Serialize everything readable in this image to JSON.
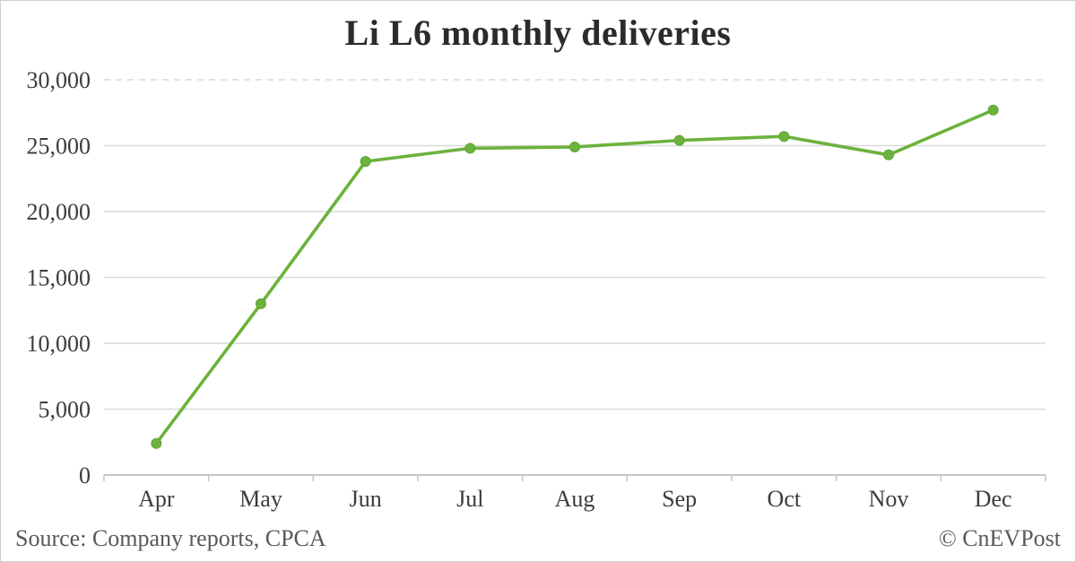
{
  "page": {
    "footer": {
      "source": "Source: Company reports, CPCA",
      "credit": "© CnEVPost"
    }
  },
  "chart_data": {
    "type": "line",
    "title": "Li L6 monthly deliveries",
    "categories": [
      "Apr",
      "May",
      "Jun",
      "Jul",
      "Aug",
      "Sep",
      "Oct",
      "Nov",
      "Dec"
    ],
    "series": [
      {
        "name": "Li L6 monthly deliveries",
        "values": [
          2400,
          13000,
          23800,
          24800,
          24900,
          25400,
          25700,
          24300,
          27700
        ]
      }
    ],
    "xlabel": "",
    "ylabel": "",
    "ylim": [
      0,
      30000
    ],
    "ytick_interval": 5000,
    "ytick_labels": [
      "0",
      "5,000",
      "10,000",
      "15,000",
      "20,000",
      "25,000",
      "30,000"
    ],
    "grid": true,
    "legend": false,
    "top_gridline_style": "dashed",
    "line_color": "#6cb23d",
    "marker_edge_color": "#5fa335",
    "gridline_color": "#d9d9d9",
    "axis_color": "#c6c6c6",
    "text_color": "#3c3c3c"
  }
}
